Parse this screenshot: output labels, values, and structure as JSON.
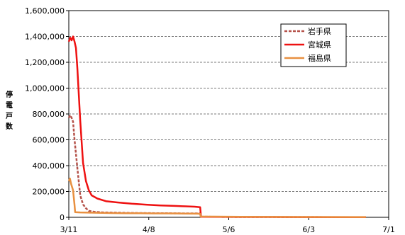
{
  "chart_data": {
    "type": "line",
    "ylabel": "停電戸数",
    "ylim": [
      0,
      1600000
    ],
    "y_ticks": [
      0,
      200000,
      400000,
      600000,
      800000,
      1000000,
      1200000,
      1400000,
      1600000
    ],
    "y_tick_labels": [
      "0",
      "200,000",
      "400,000",
      "600,000",
      "800,000",
      "1,000,000",
      "1,200,000",
      "1,400,000",
      "1,600,000"
    ],
    "x_tick_labels": [
      "3/11",
      "4/8",
      "5/6",
      "6/3",
      "7/1"
    ],
    "x_tick_days": [
      0,
      28,
      56,
      84,
      112
    ],
    "x_unit": "days after 3/11",
    "grid": true,
    "legend_position": "top-right",
    "series": [
      {
        "name": "岩手県",
        "color": "#b5524a",
        "style": "dashed",
        "points": [
          [
            0,
            770000
          ],
          [
            0.5,
            790000
          ],
          [
            1,
            770000
          ],
          [
            1.5,
            740000
          ],
          [
            2,
            600000
          ],
          [
            3,
            380000
          ],
          [
            4,
            170000
          ],
          [
            5,
            100000
          ],
          [
            6,
            70000
          ],
          [
            7,
            50000
          ],
          [
            9,
            42000
          ],
          [
            12,
            38000
          ],
          [
            16,
            36000
          ],
          [
            20,
            34000
          ],
          [
            25,
            33000
          ],
          [
            30,
            32000
          ],
          [
            35,
            31000
          ],
          [
            40,
            30000
          ],
          [
            45,
            30000
          ],
          [
            46,
            30000
          ],
          [
            46.2,
            5000
          ],
          [
            60,
            3000
          ],
          [
            80,
            2000
          ],
          [
            100,
            1000
          ],
          [
            104,
            1000
          ]
        ]
      },
      {
        "name": "宮城県",
        "color": "#ee1111",
        "style": "solid",
        "points": [
          [
            0,
            1360000
          ],
          [
            0.5,
            1390000
          ],
          [
            1,
            1370000
          ],
          [
            1.5,
            1400000
          ],
          [
            2,
            1360000
          ],
          [
            2.5,
            1310000
          ],
          [
            3,
            1150000
          ],
          [
            4,
            750000
          ],
          [
            5,
            420000
          ],
          [
            6,
            280000
          ],
          [
            7,
            210000
          ],
          [
            8,
            170000
          ],
          [
            10,
            145000
          ],
          [
            13,
            125000
          ],
          [
            17,
            115000
          ],
          [
            22,
            105000
          ],
          [
            27,
            98000
          ],
          [
            32,
            92000
          ],
          [
            37,
            88000
          ],
          [
            41,
            85000
          ],
          [
            44,
            82000
          ],
          [
            46,
            78000
          ],
          [
            46.3,
            4000
          ],
          [
            60,
            3000
          ],
          [
            80,
            2000
          ],
          [
            100,
            1500
          ],
          [
            104,
            1000
          ]
        ]
      },
      {
        "name": "福島県",
        "color": "#e89040",
        "style": "solid",
        "points": [
          [
            0,
            280000
          ],
          [
            0.4,
            300000
          ],
          [
            0.8,
            260000
          ],
          [
            1.5,
            210000
          ],
          [
            2,
            95000
          ],
          [
            2.2,
            40000
          ],
          [
            4,
            38000
          ],
          [
            7,
            36000
          ],
          [
            10,
            35000
          ],
          [
            15,
            33000
          ],
          [
            20,
            32000
          ],
          [
            25,
            31000
          ],
          [
            30,
            30000
          ],
          [
            35,
            30000
          ],
          [
            40,
            29000
          ],
          [
            45,
            28000
          ],
          [
            46,
            27000
          ],
          [
            46.2,
            6000
          ],
          [
            60,
            4000
          ],
          [
            80,
            3000
          ],
          [
            100,
            2000
          ],
          [
            104,
            2000
          ]
        ]
      }
    ]
  }
}
